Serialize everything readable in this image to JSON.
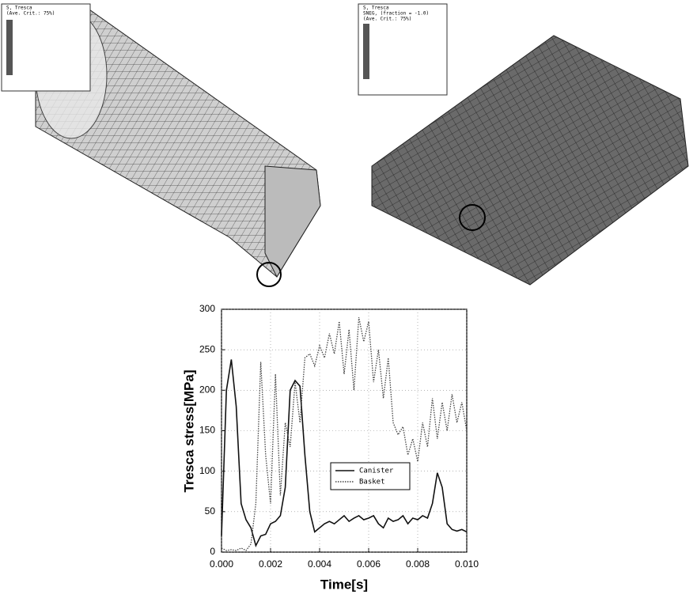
{
  "figures": [
    {
      "legend_lines": [
        "S, Tresca",
        "(Ave. Crit.: 75%)"
      ]
    },
    {
      "legend_lines": [
        "S, Tresca",
        "SNEG, (fraction = -1.0)",
        "(Ave. Crit.: 75%)"
      ]
    }
  ],
  "chart_data": {
    "type": "line",
    "xlabel": "Time[s]",
    "ylabel": "Tresca stress[MPa]",
    "x": [
      0,
      0.0002,
      0.0004,
      0.0006,
      0.0008,
      0.001,
      0.0012,
      0.0014,
      0.0016,
      0.0018,
      0.002,
      0.0022,
      0.0024,
      0.0026,
      0.0028,
      0.003,
      0.0032,
      0.0034,
      0.0036,
      0.0038,
      0.004,
      0.0042,
      0.0044,
      0.0046,
      0.0048,
      0.005,
      0.0052,
      0.0054,
      0.0056,
      0.0058,
      0.006,
      0.0062,
      0.0064,
      0.0066,
      0.0068,
      0.007,
      0.0072,
      0.0074,
      0.0076,
      0.0078,
      0.008,
      0.0082,
      0.0084,
      0.0086,
      0.0088,
      0.009,
      0.0092,
      0.0094,
      0.0096,
      0.0098,
      0.01
    ],
    "series": [
      {
        "name": "Canister",
        "color": "#111111",
        "dash": "solid",
        "values": [
          20,
          200,
          238,
          180,
          60,
          40,
          30,
          8,
          20,
          22,
          35,
          38,
          45,
          80,
          200,
          212,
          205,
          120,
          50,
          25,
          30,
          35,
          38,
          35,
          40,
          45,
          38,
          42,
          45,
          40,
          42,
          45,
          35,
          30,
          42,
          38,
          40,
          45,
          35,
          42,
          40,
          45,
          42,
          60,
          98,
          80,
          35,
          28,
          26,
          28,
          25
        ]
      },
      {
        "name": "Basket",
        "color": "#444444",
        "dash": "dotted",
        "values": [
          5,
          2,
          3,
          2,
          5,
          2,
          10,
          60,
          235,
          120,
          60,
          220,
          70,
          160,
          130,
          210,
          160,
          240,
          245,
          230,
          255,
          240,
          270,
          245,
          285,
          220,
          275,
          200,
          290,
          260,
          285,
          210,
          250,
          190,
          240,
          160,
          145,
          155,
          120,
          140,
          112,
          160,
          130,
          190,
          140,
          185,
          150,
          195,
          160,
          185,
          150
        ]
      }
    ],
    "xlim": [
      0,
      0.01
    ],
    "ylim": [
      0,
      300
    ],
    "xticks": [
      {
        "value": 0,
        "label": "0.000"
      },
      {
        "value": 0.002,
        "label": "0.002"
      },
      {
        "value": 0.004,
        "label": "0.004"
      },
      {
        "value": 0.006,
        "label": "0.006"
      },
      {
        "value": 0.008,
        "label": "0.008"
      },
      {
        "value": 0.01,
        "label": "0.010"
      }
    ],
    "yticks": [
      0,
      50,
      100,
      150,
      200,
      250,
      300
    ],
    "grid": true
  }
}
